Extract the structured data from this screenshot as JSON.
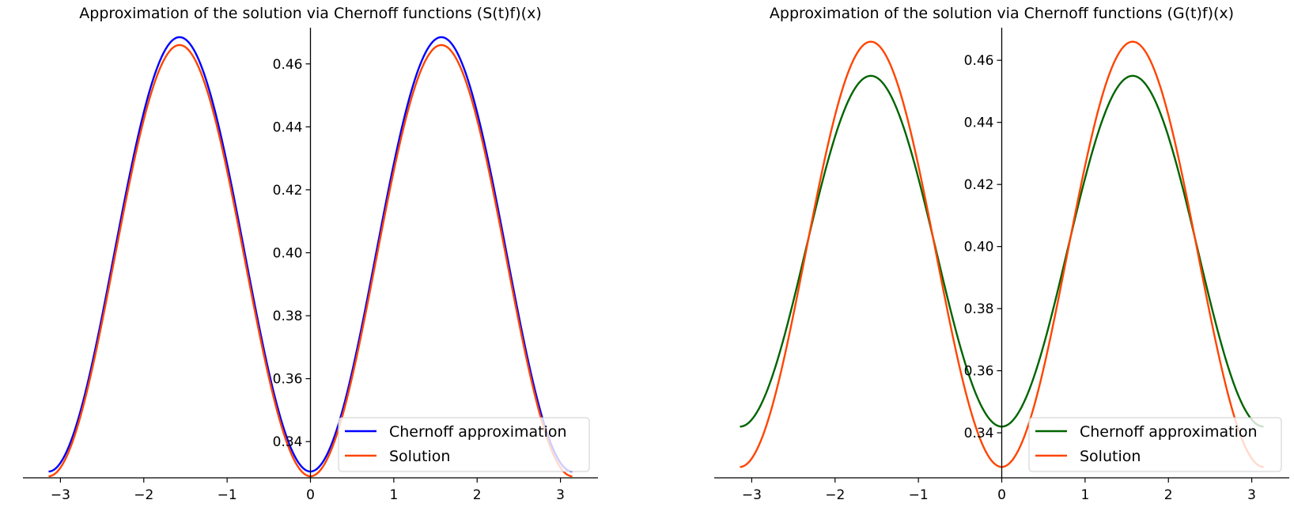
{
  "chart_data": [
    {
      "type": "line",
      "title": "Approximation of the solution via Chernoff functions (S(t)f)(x)",
      "xlabel": "",
      "ylabel": "",
      "xlim": [
        -3.45,
        3.45
      ],
      "ylim": [
        0.3285,
        0.4715
      ],
      "x_ticks": [
        -3,
        -2,
        -1,
        0,
        1,
        2,
        3
      ],
      "x_tick_labels": [
        "−3",
        "−2",
        "−1",
        "0",
        "1",
        "2",
        "3"
      ],
      "y_ticks": [
        0.34,
        0.36,
        0.38,
        0.4,
        0.42,
        0.44,
        0.46
      ],
      "y_tick_labels": [
        "0.34",
        "0.36",
        "0.38",
        "0.40",
        "0.42",
        "0.44",
        "0.46"
      ],
      "spines": "center-y-axis, bottom-x-axis",
      "legend_position": "lower-right",
      "x_domain": [
        -3.14159,
        3.14159
      ],
      "series": [
        {
          "name": "Chernoff approximation",
          "color": "#0000ff",
          "mean": 0.3995,
          "amplitude": 0.069,
          "sample_x": [
            -3.1416,
            -1.5708,
            0,
            1.5708,
            3.1416
          ],
          "sample_y": [
            0.3305,
            0.4685,
            0.3305,
            0.4685,
            0.3305
          ]
        },
        {
          "name": "Solution",
          "color": "#ff4500",
          "mean": 0.3975,
          "amplitude": 0.0685,
          "sample_x": [
            -3.1416,
            -1.5708,
            0,
            1.5708,
            3.1416
          ],
          "sample_y": [
            0.329,
            0.466,
            0.329,
            0.466,
            0.329
          ]
        }
      ]
    },
    {
      "type": "line",
      "title": "Approximation of the solution via Chernoff functions (G(t)f)(x)",
      "xlabel": "",
      "ylabel": "",
      "xlim": [
        -3.45,
        3.45
      ],
      "ylim": [
        0.3255,
        0.4705
      ],
      "x_ticks": [
        -3,
        -2,
        -1,
        0,
        1,
        2,
        3
      ],
      "x_tick_labels": [
        "−3",
        "−2",
        "−1",
        "0",
        "1",
        "2",
        "3"
      ],
      "y_ticks": [
        0.34,
        0.36,
        0.38,
        0.4,
        0.42,
        0.44,
        0.46
      ],
      "y_tick_labels": [
        "0.34",
        "0.36",
        "0.38",
        "0.40",
        "0.42",
        "0.44",
        "0.46"
      ],
      "spines": "center-y-axis, bottom-x-axis",
      "legend_position": "lower-right",
      "x_domain": [
        -3.14159,
        3.14159
      ],
      "series": [
        {
          "name": "Chernoff approximation",
          "color": "#006400",
          "mean": 0.3985,
          "amplitude": 0.0565,
          "sample_x": [
            -3.1416,
            -1.5708,
            0,
            1.5708,
            3.1416
          ],
          "sample_y": [
            0.342,
            0.455,
            0.342,
            0.455,
            0.342
          ]
        },
        {
          "name": "Solution",
          "color": "#ff4500",
          "mean": 0.3975,
          "amplitude": 0.0685,
          "sample_x": [
            -3.1416,
            -1.5708,
            0,
            1.5708,
            3.1416
          ],
          "sample_y": [
            0.329,
            0.466,
            0.329,
            0.466,
            0.329
          ]
        }
      ]
    }
  ]
}
